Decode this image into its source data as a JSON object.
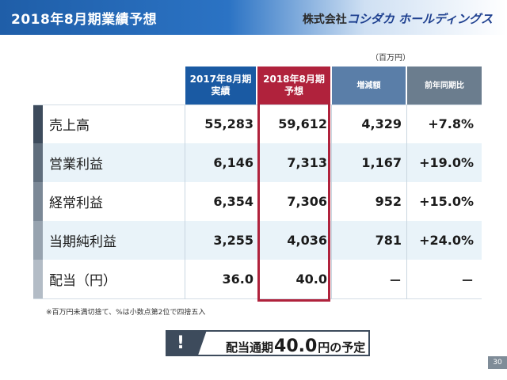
{
  "header": {
    "title": "2018年8月期業績予想",
    "logo_prefix": "株式会社",
    "logo_name": "コシダカ ホールディングス"
  },
  "unit": "（百万円）",
  "columns": {
    "actual_line1": "2017年8月期",
    "actual_line2": "実績",
    "forecast_line1": "2018年8月期",
    "forecast_line2": "予想",
    "change": "増減額",
    "yoy": "前年同期比"
  },
  "rows": [
    {
      "label": "売上高",
      "actual": "55,283",
      "forecast": "59,612",
      "change": "4,329",
      "yoy": "+7.8%"
    },
    {
      "label": "営業利益",
      "actual": "6,146",
      "forecast": "7,313",
      "change": "1,167",
      "yoy": "+19.0%"
    },
    {
      "label": "経常利益",
      "actual": "6,354",
      "forecast": "7,306",
      "change": "952",
      "yoy": "+15.0%"
    },
    {
      "label": "当期純利益",
      "actual": "3,255",
      "forecast": "4,036",
      "change": "781",
      "yoy": "+24.0%"
    },
    {
      "label": "配当（円）",
      "actual": "36.0",
      "forecast": "40.0",
      "change": "－",
      "yoy": "－"
    }
  ],
  "note": "※百万円未満切捨て、%は小数点第2位で四捨五入",
  "callout": {
    "icon_char": "!",
    "text_before": "配当通期",
    "value": "40.0",
    "text_after": "円の予定"
  },
  "page_number": "30",
  "colors": {
    "brand_blue": "#1a5aa3",
    "forecast_red": "#b0223c",
    "change_header": "#5a7ea8",
    "yoy_header": "#6b7d8e"
  }
}
